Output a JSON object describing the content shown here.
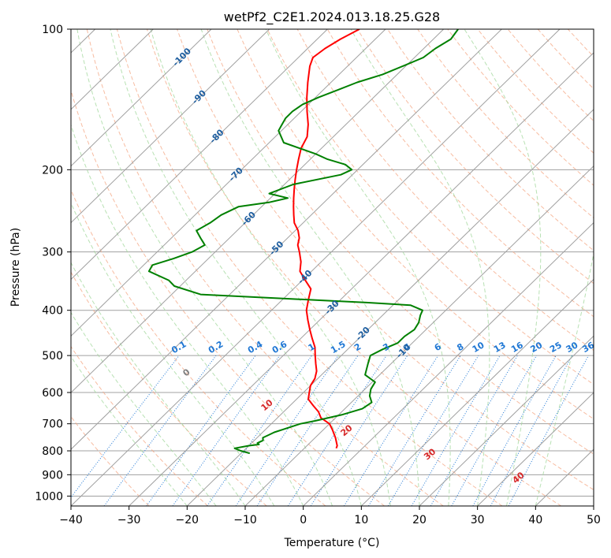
{
  "chart_data": {
    "type": "line",
    "subtype": "skew-T log-P diagram",
    "title": "wetPf2_C2E1.2024.013.18.25.G28",
    "xlabel": "Temperature (°C)",
    "ylabel": "Pressure (hPa)",
    "xlim": [
      -40,
      50
    ],
    "ylim": [
      1050,
      100
    ],
    "yscale": "log",
    "x_ticks": [
      -40,
      -30,
      -20,
      -10,
      0,
      10,
      20,
      30,
      40,
      50
    ],
    "y_ticks": [
      100,
      200,
      300,
      400,
      500,
      600,
      700,
      800,
      900,
      1000
    ],
    "grid": true,
    "colors": {
      "temperature": "#ff0000",
      "dewpoint": "#008000",
      "isotherm": "#a0a0a0",
      "dry_adiabat": "#f4a582",
      "moist_adiabat": "#a6d9a0",
      "mixing_ratio": "#1f77d4",
      "dry_adiabat_label": "#d62728",
      "moist_adiabat_label": "#1f5fa0",
      "zero_label": "#808080"
    },
    "series": [
      {
        "key": "temperature",
        "pressure": [
          790,
          780,
          750,
          720,
          700,
          680,
          660,
          640,
          620,
          600,
          580,
          560,
          540,
          520,
          500,
          480,
          460,
          440,
          420,
          400,
          380,
          360,
          345,
          330,
          315,
          300,
          290,
          280,
          270,
          260,
          250,
          240,
          230,
          220,
          210,
          200,
          190,
          180,
          170,
          160,
          150,
          140,
          130,
          120,
          115,
          110,
          105,
          100
        ],
        "temp": [
          -4.5,
          -4.8,
          -6.5,
          -8.5,
          -10.0,
          -12.5,
          -14.0,
          -16.0,
          -18.0,
          -19.0,
          -20.0,
          -20.5,
          -21.5,
          -23.0,
          -24.5,
          -26.0,
          -28.0,
          -30.0,
          -32.0,
          -34.0,
          -35.5,
          -37.0,
          -39.5,
          -42.0,
          -43.5,
          -45.5,
          -47.0,
          -48.0,
          -49.5,
          -51.5,
          -53.0,
          -54.5,
          -56.0,
          -57.5,
          -59.0,
          -60.5,
          -62.0,
          -63.5,
          -64.5,
          -66.5,
          -69.0,
          -71.5,
          -74.0,
          -76.5,
          -77.5,
          -77.0,
          -76.0,
          -74.5
        ]
      },
      {
        "key": "dewpoint",
        "pressure": [
          810,
          800,
          790,
          780,
          775,
          770,
          760,
          750,
          740,
          730,
          720,
          710,
          700,
          690,
          670,
          650,
          630,
          610,
          590,
          570,
          550,
          520,
          500,
          485,
          470,
          455,
          440,
          425,
          410,
          400,
          390,
          385,
          370,
          355,
          345,
          330,
          320,
          310,
          300,
          290,
          280,
          270,
          260,
          250,
          240,
          235,
          230,
          225,
          215,
          205,
          200,
          195,
          190,
          185,
          175,
          165,
          160,
          155,
          150,
          145,
          140,
          135,
          130,
          125,
          120,
          115,
          110,
          105,
          100
        ],
        "dew": [
          -18.5,
          -20.5,
          -22.0,
          -20.0,
          -18.5,
          -19.0,
          -18.5,
          -19.0,
          -18.5,
          -18.0,
          -17.0,
          -16.0,
          -15.0,
          -13.0,
          -9.5,
          -7.0,
          -6.5,
          -8.0,
          -9.0,
          -9.5,
          -12.5,
          -14.0,
          -15.0,
          -14.0,
          -12.5,
          -12.5,
          -12.0,
          -12.5,
          -13.5,
          -14.0,
          -17.0,
          -25.0,
          -55.0,
          -61.0,
          -63.0,
          -68.0,
          -68.5,
          -66.0,
          -64.0,
          -63.0,
          -65.0,
          -67.0,
          -66.0,
          -65.5,
          -64.0,
          -59.5,
          -57.0,
          -61.0,
          -58.5,
          -52.0,
          -51.0,
          -53.0,
          -57.0,
          -60.0,
          -67.5,
          -70.5,
          -71.0,
          -71.5,
          -71.5,
          -71.0,
          -69.5,
          -67.5,
          -65.5,
          -62.5,
          -60.5,
          -58.5,
          -58.0,
          -57.0,
          -57.5
        ]
      }
    ],
    "mixing_ratio_lines_gkg": [
      0.1,
      0.2,
      0.4,
      0.6,
      1,
      1.5,
      2,
      3,
      4,
      6,
      8,
      10,
      13,
      16,
      20,
      25,
      30,
      36
    ],
    "mixing_ratio_labels": [
      "0.1",
      "0.2",
      "0.4",
      "0.6",
      "1",
      "1.5",
      "2",
      "3",
      "4",
      "6",
      "8",
      "10",
      "13",
      "16",
      "20",
      "25",
      "30",
      "36"
    ],
    "dry_adiabat_labels": [
      "0",
      "10",
      "20",
      "30",
      "40"
    ],
    "dry_adiabat_label_values_c": [
      0,
      10,
      20,
      30,
      40
    ],
    "moist_adiabat_labels": [
      "-100",
      "-90",
      "-80",
      "-70",
      "-60",
      "-50",
      "-40",
      "-30",
      "-20",
      "-10"
    ],
    "moist_adiabat_label_values_c": [
      -100,
      -90,
      -80,
      -70,
      -60,
      -50,
      -40,
      -30,
      -20,
      -10
    ]
  }
}
